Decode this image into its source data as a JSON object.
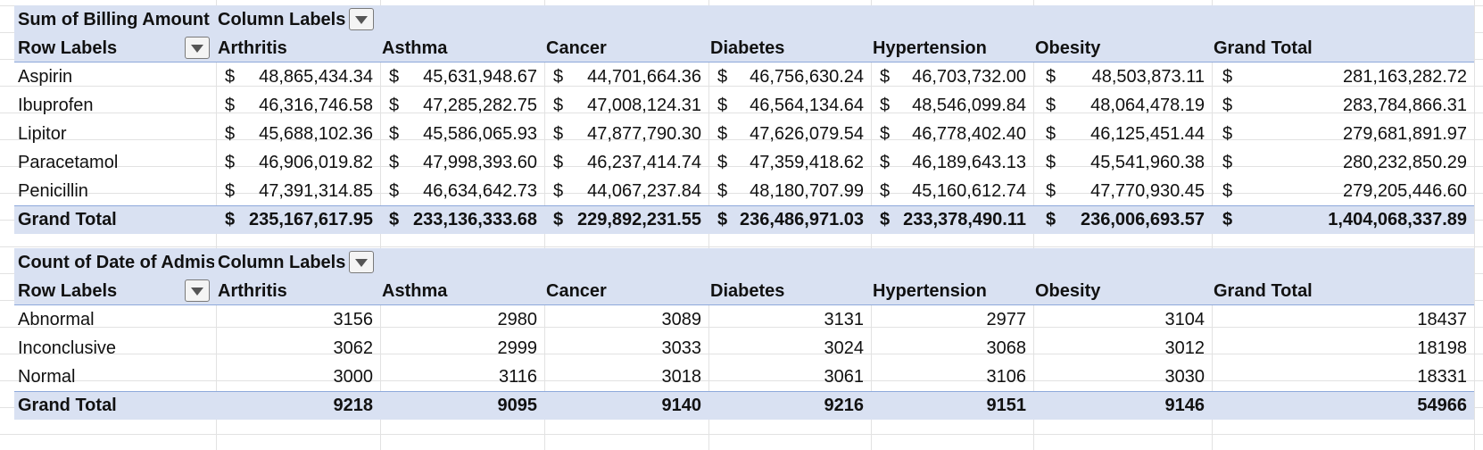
{
  "pivot1": {
    "value_label": "Sum of Billing Amount",
    "column_labels": "Column Labels",
    "row_labels": "Row Labels",
    "headers": [
      "Arthritis",
      "Asthma",
      "Cancer",
      "Diabetes",
      "Hypertension",
      "Obesity",
      "Grand Total"
    ],
    "rows": [
      {
        "label": "Aspirin",
        "values": [
          "48,865,434.34",
          "45,631,948.67",
          "44,701,664.36",
          "46,756,630.24",
          "46,703,732.00",
          "48,503,873.11",
          "281,163,282.72"
        ]
      },
      {
        "label": "Ibuprofen",
        "values": [
          "46,316,746.58",
          "47,285,282.75",
          "47,008,124.31",
          "46,564,134.64",
          "48,546,099.84",
          "48,064,478.19",
          "283,784,866.31"
        ]
      },
      {
        "label": "Lipitor",
        "values": [
          "45,688,102.36",
          "45,586,065.93",
          "47,877,790.30",
          "47,626,079.54",
          "46,778,402.40",
          "46,125,451.44",
          "279,681,891.97"
        ]
      },
      {
        "label": "Paracetamol",
        "values": [
          "46,906,019.82",
          "47,998,393.60",
          "46,237,414.74",
          "47,359,418.62",
          "46,189,643.13",
          "45,541,960.38",
          "280,232,850.29"
        ]
      },
      {
        "label": "Penicillin",
        "values": [
          "47,391,314.85",
          "46,634,642.73",
          "44,067,237.84",
          "48,180,707.99",
          "45,160,612.74",
          "47,770,930.45",
          "279,205,446.60"
        ]
      }
    ],
    "total": {
      "label": "Grand Total",
      "values": [
        "235,167,617.95",
        "233,136,333.68",
        "229,892,231.55",
        "236,486,971.03",
        "233,378,490.11",
        "236,006,693.57",
        "1,404,068,337.89"
      ]
    },
    "currency_symbol": "$"
  },
  "pivot2": {
    "value_label": "Count of Date of Admis",
    "column_labels": "Column Labels",
    "row_labels": "Row Labels",
    "headers": [
      "Arthritis",
      "Asthma",
      "Cancer",
      "Diabetes",
      "Hypertension",
      "Obesity",
      "Grand Total"
    ],
    "rows": [
      {
        "label": "Abnormal",
        "values": [
          "3156",
          "2980",
          "3089",
          "3131",
          "2977",
          "3104",
          "18437"
        ]
      },
      {
        "label": "Inconclusive",
        "values": [
          "3062",
          "2999",
          "3033",
          "3024",
          "3068",
          "3012",
          "18198"
        ]
      },
      {
        "label": "Normal",
        "values": [
          "3000",
          "3116",
          "3018",
          "3061",
          "3106",
          "3030",
          "18331"
        ]
      }
    ],
    "total": {
      "label": "Grand Total",
      "values": [
        "9218",
        "9095",
        "9140",
        "9216",
        "9151",
        "9146",
        "54966"
      ]
    }
  },
  "colors": {
    "band": "#d9e1f2",
    "separator": "#8ea9db",
    "gridline": "#e2e2e2"
  }
}
